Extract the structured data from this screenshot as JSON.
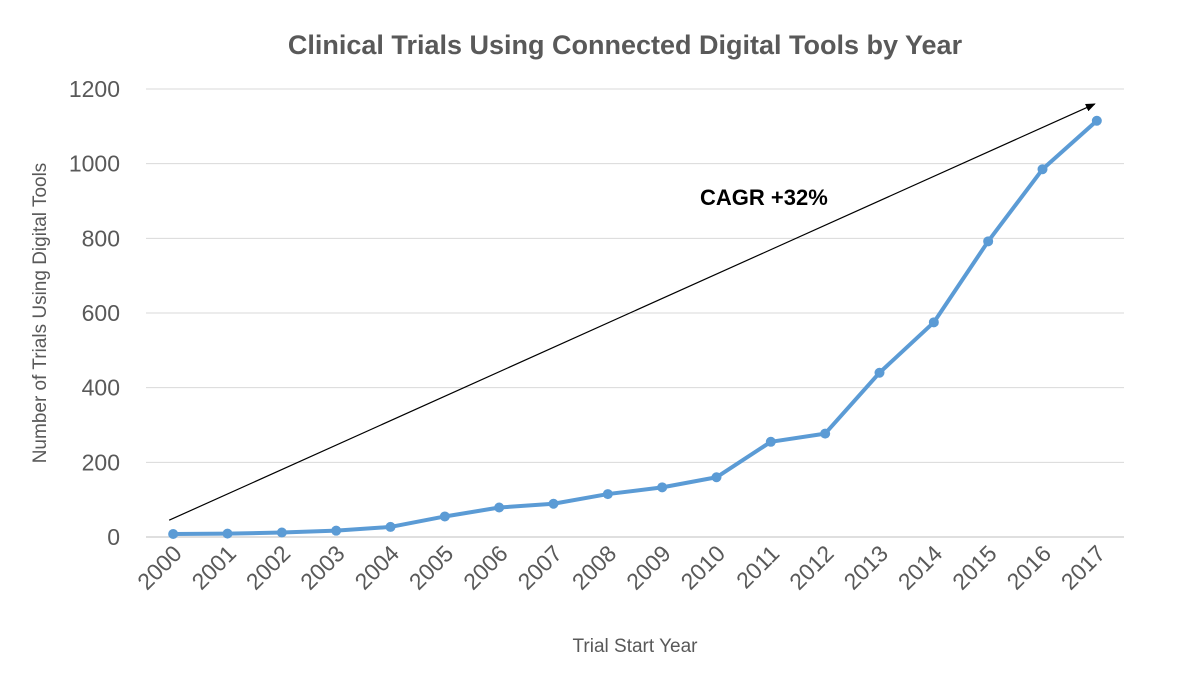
{
  "chart_data": {
    "type": "line",
    "title": "Clinical Trials Using Connected Digital Tools by Year",
    "xlabel": "Trial Start Year",
    "ylabel": "Number of Trials Using Digital Tools",
    "ylim": [
      0,
      1200
    ],
    "yticks": [
      "0",
      "200",
      "400",
      "600",
      "800",
      "1000",
      "1200"
    ],
    "grid": true,
    "categories": [
      "2000",
      "2001",
      "2002",
      "2003",
      "2004",
      "2005",
      "2006",
      "2007",
      "2008",
      "2009",
      "2010",
      "2011",
      "2012",
      "2013",
      "2014",
      "2015",
      "2016",
      "2017"
    ],
    "series": [
      {
        "values": [
          8,
          9,
          12,
          17,
          27,
          55,
          79,
          89,
          115,
          133,
          160,
          255,
          277,
          440,
          575,
          792,
          985,
          1115
        ]
      }
    ],
    "annotations": [
      {
        "text": "CAGR  +32%",
        "arrow_from_category": "2000",
        "arrow_to_category": "2017",
        "arrow_from_value": 45,
        "arrow_to_value": 1160
      }
    ],
    "colors": {
      "series": "#5B9BD5",
      "grid": "#D9D9D9",
      "text": "#595959",
      "arrow": "#000000"
    }
  }
}
